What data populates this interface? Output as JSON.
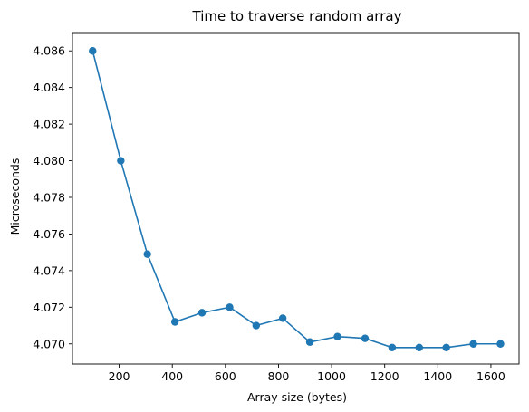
{
  "chart_data": {
    "type": "line",
    "title": "Time to traverse random array",
    "xlabel": "Array size (bytes)",
    "ylabel": "Microseconds",
    "xlim": [
      24,
      1706
    ],
    "ylim": [
      4.0689,
      4.087
    ],
    "xticks": [
      200,
      400,
      600,
      800,
      1000,
      1200,
      1400,
      1600
    ],
    "yticks": [
      4.07,
      4.072,
      4.074,
      4.076,
      4.078,
      4.08,
      4.082,
      4.084,
      4.086
    ],
    "ytick_labels": [
      "4.070",
      "4.072",
      "4.074",
      "4.076",
      "4.078",
      "4.080",
      "4.082",
      "4.084",
      "4.086"
    ],
    "grid": false,
    "series": [
      {
        "color": "#1f77b4",
        "marker": "circle",
        "x": [
          100,
          206,
          306,
          410,
          512,
          616,
          716,
          816,
          918,
          1022,
          1126,
          1228,
          1330,
          1432,
          1534,
          1636
        ],
        "y": [
          4.086,
          4.08,
          4.0749,
          4.0712,
          4.0717,
          4.072,
          4.071,
          4.0714,
          4.0701,
          4.0704,
          4.0703,
          4.0698,
          4.0698,
          4.0698,
          4.07,
          4.07
        ]
      }
    ]
  }
}
